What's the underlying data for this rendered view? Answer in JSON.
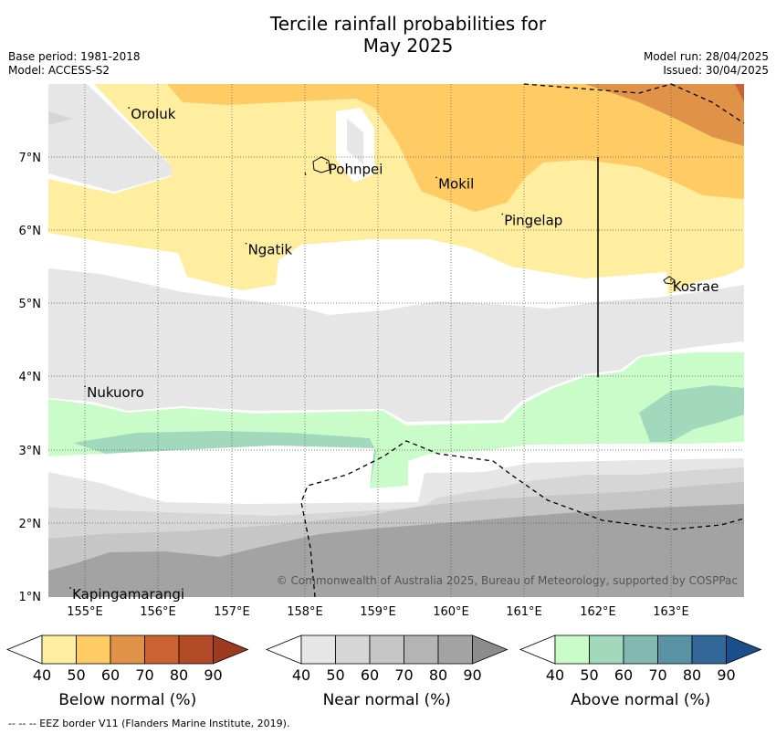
{
  "title": {
    "line1": "Tercile rainfall probabilities for",
    "line2": "May 2025"
  },
  "meta": {
    "base_period": "Base period: 1981-2018",
    "model": "Model: ACCESS-S2",
    "model_run": "Model run: 28/04/2025",
    "issued": "Issued: 30/04/2025"
  },
  "axes": {
    "x_ticks": [
      "155°E",
      "156°E",
      "157°E",
      "158°E",
      "159°E",
      "160°E",
      "161°E",
      "162°E",
      "163°E"
    ],
    "y_ticks": [
      "7°N",
      "6°N",
      "5°N",
      "4°N",
      "3°N",
      "2°N",
      "1°N"
    ],
    "x_range": [
      154.5,
      164.0
    ],
    "y_range": [
      1.0,
      8.0
    ]
  },
  "places": [
    {
      "name": "Oroluk",
      "lon": 155.6,
      "lat": 7.65
    },
    {
      "name": "Pohnpei",
      "lon": 158.3,
      "lat": 6.9
    },
    {
      "name": "Mokil",
      "lon": 159.8,
      "lat": 6.7
    },
    {
      "name": "Pingelap",
      "lon": 160.7,
      "lat": 6.2
    },
    {
      "name": "Ngatik",
      "lon": 157.2,
      "lat": 5.8
    },
    {
      "name": "Kosrae",
      "lon": 163.0,
      "lat": 5.3
    },
    {
      "name": "Nukuoro",
      "lon": 155.0,
      "lat": 3.85
    },
    {
      "name": "Kapingamarangi",
      "lon": 154.8,
      "lat": 1.1
    }
  ],
  "copyright": "© Commonwealth of Australia 2025, Bureau of Meteorology, supported by COSPPac",
  "legends": [
    {
      "label": "Below normal (%)",
      "ticks": [
        "40",
        "50",
        "60",
        "70",
        "80",
        "90"
      ],
      "colors": [
        "#ffeda0",
        "#fecb65",
        "#e09248",
        "#cc6231",
        "#b24a28",
        "#9c3b1f"
      ]
    },
    {
      "label": "Near normal (%)",
      "ticks": [
        "40",
        "50",
        "60",
        "70",
        "80",
        "90"
      ],
      "colors": [
        "#e6e6e6",
        "#d6d6d6",
        "#c6c6c6",
        "#b4b4b4",
        "#a3a3a3",
        "#8c8c8c"
      ]
    },
    {
      "label": "Above normal (%)",
      "ticks": [
        "40",
        "50",
        "60",
        "70",
        "80",
        "90"
      ],
      "colors": [
        "#c9fcc9",
        "#a2d9bd",
        "#82b8b0",
        "#5a93a4",
        "#336699",
        "#1c4f8a"
      ]
    }
  ],
  "footer": "--  --  -- EEZ border V11 (Flanders Marine Institute, 2019)."
}
